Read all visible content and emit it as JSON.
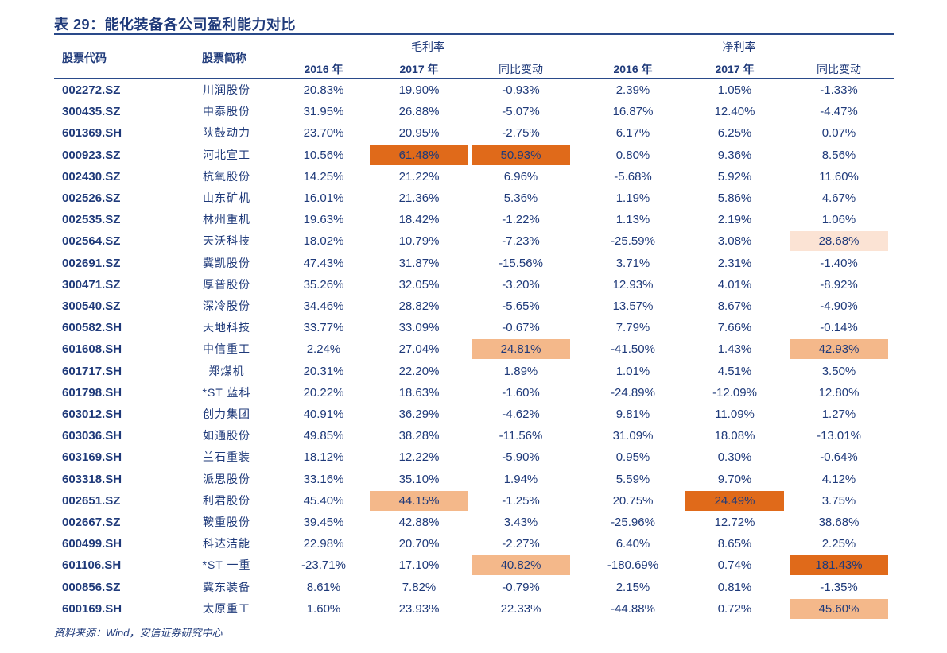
{
  "title": "表 29：能化装备各公司盈利能力对比",
  "headers": {
    "code": "股票代码",
    "name": "股票简称",
    "gross_margin": "毛利率",
    "net_margin": "净利率",
    "y2016": "2016 年",
    "y2017": "2017 年",
    "yoy": "同比变动"
  },
  "rows": [
    {
      "code": "002272.SZ",
      "name": "川润股份",
      "gm16": "20.83%",
      "gm17": "19.90%",
      "gmchg": "-0.93%",
      "nm16": "2.39%",
      "nm17": "1.05%",
      "nmchg": "-1.33%"
    },
    {
      "code": "300435.SZ",
      "name": "中泰股份",
      "gm16": "31.95%",
      "gm17": "26.88%",
      "gmchg": "-5.07%",
      "nm16": "16.87%",
      "nm17": "12.40%",
      "nmchg": "-4.47%"
    },
    {
      "code": "601369.SH",
      "name": "陕鼓动力",
      "gm16": "23.70%",
      "gm17": "20.95%",
      "gmchg": "-2.75%",
      "nm16": "6.17%",
      "nm17": "6.25%",
      "nmchg": "0.07%"
    },
    {
      "code": "000923.SZ",
      "name": "河北宣工",
      "gm16": "10.56%",
      "gm17": "61.48%",
      "gmchg": "50.93%",
      "nm16": "0.80%",
      "nm17": "9.36%",
      "nmchg": "8.56%"
    },
    {
      "code": "002430.SZ",
      "name": "杭氧股份",
      "gm16": "14.25%",
      "gm17": "21.22%",
      "gmchg": "6.96%",
      "nm16": "-5.68%",
      "nm17": "5.92%",
      "nmchg": "11.60%"
    },
    {
      "code": "002526.SZ",
      "name": "山东矿机",
      "gm16": "16.01%",
      "gm17": "21.36%",
      "gmchg": "5.36%",
      "nm16": "1.19%",
      "nm17": "5.86%",
      "nmchg": "4.67%"
    },
    {
      "code": "002535.SZ",
      "name": "林州重机",
      "gm16": "19.63%",
      "gm17": "18.42%",
      "gmchg": "-1.22%",
      "nm16": "1.13%",
      "nm17": "2.19%",
      "nmchg": "1.06%"
    },
    {
      "code": "002564.SZ",
      "name": "天沃科技",
      "gm16": "18.02%",
      "gm17": "10.79%",
      "gmchg": "-7.23%",
      "nm16": "-25.59%",
      "nm17": "3.08%",
      "nmchg": "28.68%"
    },
    {
      "code": "002691.SZ",
      "name": "冀凯股份",
      "gm16": "47.43%",
      "gm17": "31.87%",
      "gmchg": "-15.56%",
      "nm16": "3.71%",
      "nm17": "2.31%",
      "nmchg": "-1.40%"
    },
    {
      "code": "300471.SZ",
      "name": "厚普股份",
      "gm16": "35.26%",
      "gm17": "32.05%",
      "gmchg": "-3.20%",
      "nm16": "12.93%",
      "nm17": "4.01%",
      "nmchg": "-8.92%"
    },
    {
      "code": "300540.SZ",
      "name": "深冷股份",
      "gm16": "34.46%",
      "gm17": "28.82%",
      "gmchg": "-5.65%",
      "nm16": "13.57%",
      "nm17": "8.67%",
      "nmchg": "-4.90%"
    },
    {
      "code": "600582.SH",
      "name": "天地科技",
      "gm16": "33.77%",
      "gm17": "33.09%",
      "gmchg": "-0.67%",
      "nm16": "7.79%",
      "nm17": "7.66%",
      "nmchg": "-0.14%"
    },
    {
      "code": "601608.SH",
      "name": "中信重工",
      "gm16": "2.24%",
      "gm17": "27.04%",
      "gmchg": "24.81%",
      "nm16": "-41.50%",
      "nm17": "1.43%",
      "nmchg": "42.93%"
    },
    {
      "code": "601717.SH",
      "name": "郑煤机",
      "gm16": "20.31%",
      "gm17": "22.20%",
      "gmchg": "1.89%",
      "nm16": "1.01%",
      "nm17": "4.51%",
      "nmchg": "3.50%"
    },
    {
      "code": "601798.SH",
      "name": "*ST 蓝科",
      "gm16": "20.22%",
      "gm17": "18.63%",
      "gmchg": "-1.60%",
      "nm16": "-24.89%",
      "nm17": "-12.09%",
      "nmchg": "12.80%"
    },
    {
      "code": "603012.SH",
      "name": "创力集团",
      "gm16": "40.91%",
      "gm17": "36.29%",
      "gmchg": "-4.62%",
      "nm16": "9.81%",
      "nm17": "11.09%",
      "nmchg": "1.27%"
    },
    {
      "code": "603036.SH",
      "name": "如通股份",
      "gm16": "49.85%",
      "gm17": "38.28%",
      "gmchg": "-11.56%",
      "nm16": "31.09%",
      "nm17": "18.08%",
      "nmchg": "-13.01%"
    },
    {
      "code": "603169.SH",
      "name": "兰石重装",
      "gm16": "18.12%",
      "gm17": "12.22%",
      "gmchg": "-5.90%",
      "nm16": "0.95%",
      "nm17": "0.30%",
      "nmchg": "-0.64%"
    },
    {
      "code": "603318.SH",
      "name": "派思股份",
      "gm16": "33.16%",
      "gm17": "35.10%",
      "gmchg": "1.94%",
      "nm16": "5.59%",
      "nm17": "9.70%",
      "nmchg": "4.12%"
    },
    {
      "code": "002651.SZ",
      "name": "利君股份",
      "gm16": "45.40%",
      "gm17": "44.15%",
      "gmchg": "-1.25%",
      "nm16": "20.75%",
      "nm17": "24.49%",
      "nmchg": "3.75%"
    },
    {
      "code": "002667.SZ",
      "name": "鞍重股份",
      "gm16": "39.45%",
      "gm17": "42.88%",
      "gmchg": "3.43%",
      "nm16": "-25.96%",
      "nm17": "12.72%",
      "nmchg": "38.68%"
    },
    {
      "code": "600499.SH",
      "name": "科达洁能",
      "gm16": "22.98%",
      "gm17": "20.70%",
      "gmchg": "-2.27%",
      "nm16": "6.40%",
      "nm17": "8.65%",
      "nmchg": "2.25%"
    },
    {
      "code": "601106.SH",
      "name": "*ST 一重",
      "gm16": "-23.71%",
      "gm17": "17.10%",
      "gmchg": "40.82%",
      "nm16": "-180.69%",
      "nm17": "0.74%",
      "nmchg": "181.43%"
    },
    {
      "code": "000856.SZ",
      "name": "冀东装备",
      "gm16": "8.61%",
      "gm17": "7.82%",
      "gmchg": "-0.79%",
      "nm16": "2.15%",
      "nm17": "0.81%",
      "nmchg": "-1.35%"
    },
    {
      "code": "600169.SH",
      "name": "太原重工",
      "gm16": "1.60%",
      "gm17": "23.93%",
      "gmchg": "22.33%",
      "nm16": "-44.88%",
      "nm17": "0.72%",
      "nmchg": "45.60%"
    }
  ],
  "highlights": [
    {
      "row": 3,
      "col": "gm17",
      "level": "dark"
    },
    {
      "row": 3,
      "col": "gmchg",
      "level": "dark"
    },
    {
      "row": 7,
      "col": "nmchg",
      "level": "light"
    },
    {
      "row": 12,
      "col": "gmchg",
      "level": "mid"
    },
    {
      "row": 12,
      "col": "nmchg",
      "level": "mid"
    },
    {
      "row": 19,
      "col": "gm17",
      "level": "mid"
    },
    {
      "row": 19,
      "col": "nm17",
      "level": "dark"
    },
    {
      "row": 22,
      "col": "gmchg",
      "level": "mid"
    },
    {
      "row": 22,
      "col": "nmchg",
      "level": "dark"
    },
    {
      "row": 24,
      "col": "nmchg",
      "level": "mid"
    }
  ],
  "source": "资料来源：Wind，安信证券研究中心"
}
